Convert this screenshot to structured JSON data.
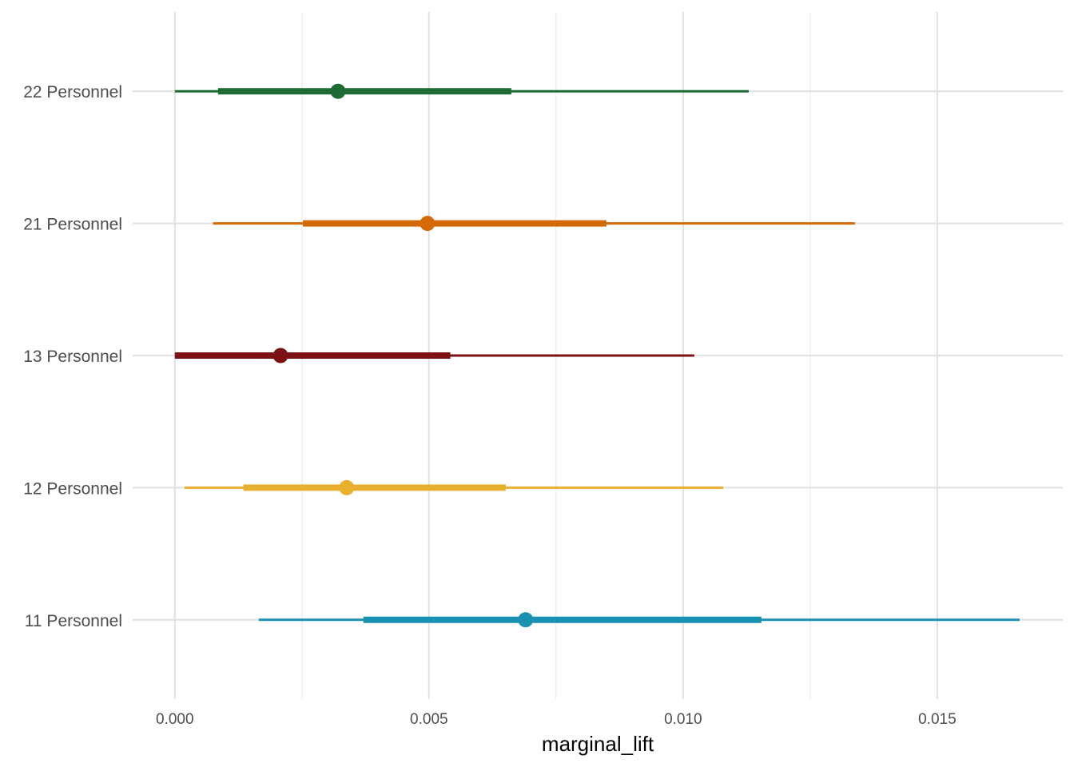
{
  "chart_data": {
    "type": "interval",
    "title": "",
    "xlabel": "marginal_lift",
    "ylabel": "",
    "xlim": [
      -0.00083,
      0.01747
    ],
    "x_ticks": [
      0.0,
      0.005,
      0.01,
      0.015
    ],
    "x_tick_labels": [
      "0.000",
      "0.005",
      "0.010",
      "0.015"
    ],
    "x_minor_ticks": [
      0.0025,
      0.0075,
      0.0125
    ],
    "grid": true,
    "categories": [
      "22 Personnel",
      "21 Personnel",
      "13 Personnel",
      "12 Personnel",
      "11 Personnel"
    ],
    "series": [
      {
        "category": "22 Personnel",
        "point": 0.00321,
        "inner": [
          0.00085,
          0.00662
        ],
        "outer": [
          0.0,
          0.01129
        ],
        "color": "#1e6b35"
      },
      {
        "category": "21 Personnel",
        "point": 0.00497,
        "inner": [
          0.00252,
          0.00849
        ],
        "outer": [
          0.00075,
          0.01338
        ],
        "color": "#d46a07"
      },
      {
        "category": "13 Personnel",
        "point": 0.00208,
        "inner": [
          0.0,
          0.00542
        ],
        "outer": [
          0.0,
          0.01022
        ],
        "color": "#7d1214"
      },
      {
        "category": "12 Personnel",
        "point": 0.00338,
        "inner": [
          0.00135,
          0.00651
        ],
        "outer": [
          0.00019,
          0.01079
        ],
        "color": "#e8b031"
      },
      {
        "category": "11 Personnel",
        "point": 0.0069,
        "inner": [
          0.00371,
          0.01154
        ],
        "outer": [
          0.00165,
          0.01662
        ],
        "color": "#1a91b0"
      }
    ]
  }
}
